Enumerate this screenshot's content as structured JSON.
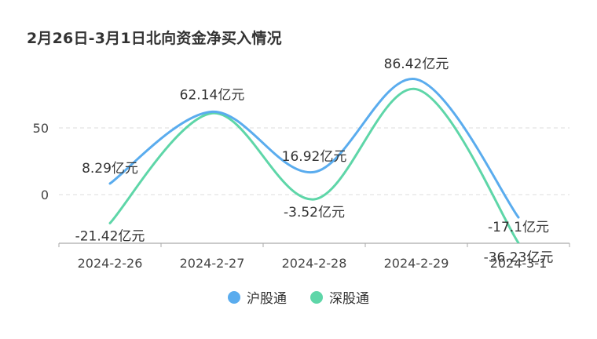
{
  "title": "2月26日-3月1日北向资金净买入情况",
  "chart_data": {
    "type": "line",
    "categories": [
      "2024-2-26",
      "2024-2-27",
      "2024-2-28",
      "2024-2-29",
      "2024-3-1"
    ],
    "series": [
      {
        "name": "沪股通",
        "values": [
          8.29,
          62.14,
          16.92,
          86.42,
          -17.1
        ],
        "labels": [
          "8.29亿元",
          "62.14亿元",
          "16.92亿元",
          "86.42亿元",
          "-17.1亿元"
        ],
        "color": "#5aacee"
      },
      {
        "name": "深股通",
        "values": [
          -21.42,
          61.0,
          -3.52,
          79.0,
          -36.23
        ],
        "labels": [
          "-21.42亿元",
          "",
          "-3.52亿元",
          "",
          "-36.23亿元"
        ],
        "color": "#5ed6a8"
      }
    ],
    "yticks": [
      0,
      50
    ],
    "ylim": [
      -36.23,
      86.42
    ],
    "grid": true,
    "smooth": true,
    "legend": "bottom-center"
  }
}
